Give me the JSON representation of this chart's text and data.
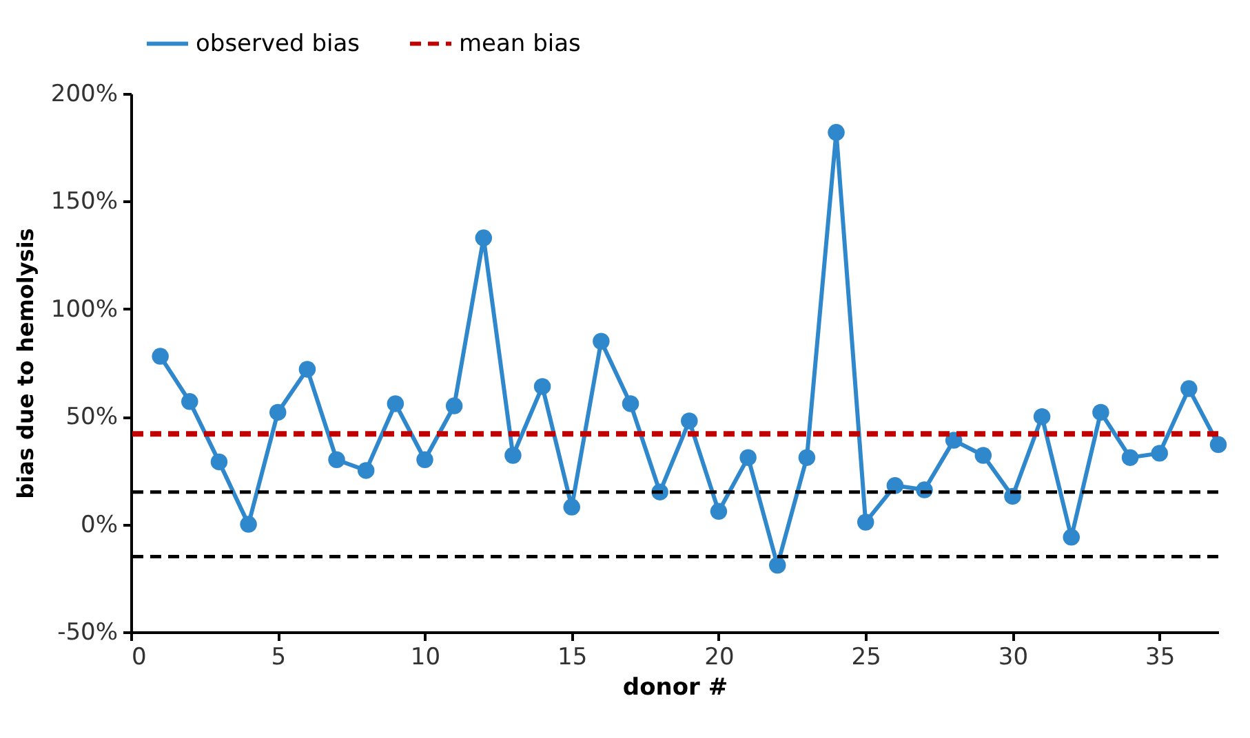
{
  "chart_data": {
    "type": "line",
    "xlabel": "donor #",
    "ylabel": "bias due to hemolysis",
    "x": [
      1,
      2,
      3,
      4,
      5,
      6,
      7,
      8,
      9,
      10,
      11,
      12,
      13,
      14,
      15,
      16,
      17,
      18,
      19,
      20,
      21,
      22,
      23,
      24,
      25,
      26,
      27,
      28,
      29,
      30,
      31,
      32,
      33,
      34,
      35,
      36,
      37
    ],
    "series": [
      {
        "name": "observed bias",
        "color": "#2f87cc",
        "values": [
          78,
          57,
          29,
          0,
          52,
          72,
          30,
          25,
          56,
          30,
          55,
          133,
          32,
          64,
          8,
          85,
          56,
          15,
          48,
          6,
          31,
          -19,
          31,
          182,
          1,
          18,
          16,
          39,
          32,
          13,
          50,
          -6,
          52,
          31,
          33,
          63,
          37
        ]
      }
    ],
    "xlim": [
      0,
      37
    ],
    "xticks": [
      0,
      5,
      10,
      15,
      20,
      25,
      30,
      35
    ],
    "ylim": [
      -50,
      200
    ],
    "yticks": [
      {
        "value": -50,
        "label": "-50%"
      },
      {
        "value": 0,
        "label": "0%"
      },
      {
        "value": 50,
        "label": "50%"
      },
      {
        "value": 100,
        "label": "100%"
      },
      {
        "value": 150,
        "label": "150%"
      },
      {
        "value": 200,
        "label": "200%"
      }
    ],
    "ref_lines": [
      {
        "axis": "y",
        "value": 42,
        "label": "mean bias",
        "color": "#c00000",
        "line_style": "dashed"
      },
      {
        "axis": "y",
        "value": 15,
        "color": "#000000",
        "line_style": "dashed"
      },
      {
        "axis": "y",
        "value": -15,
        "color": "#000000",
        "line_style": "dashed"
      }
    ],
    "legend": "top",
    "marker": "circle",
    "line_style": "solid",
    "grid": false
  }
}
